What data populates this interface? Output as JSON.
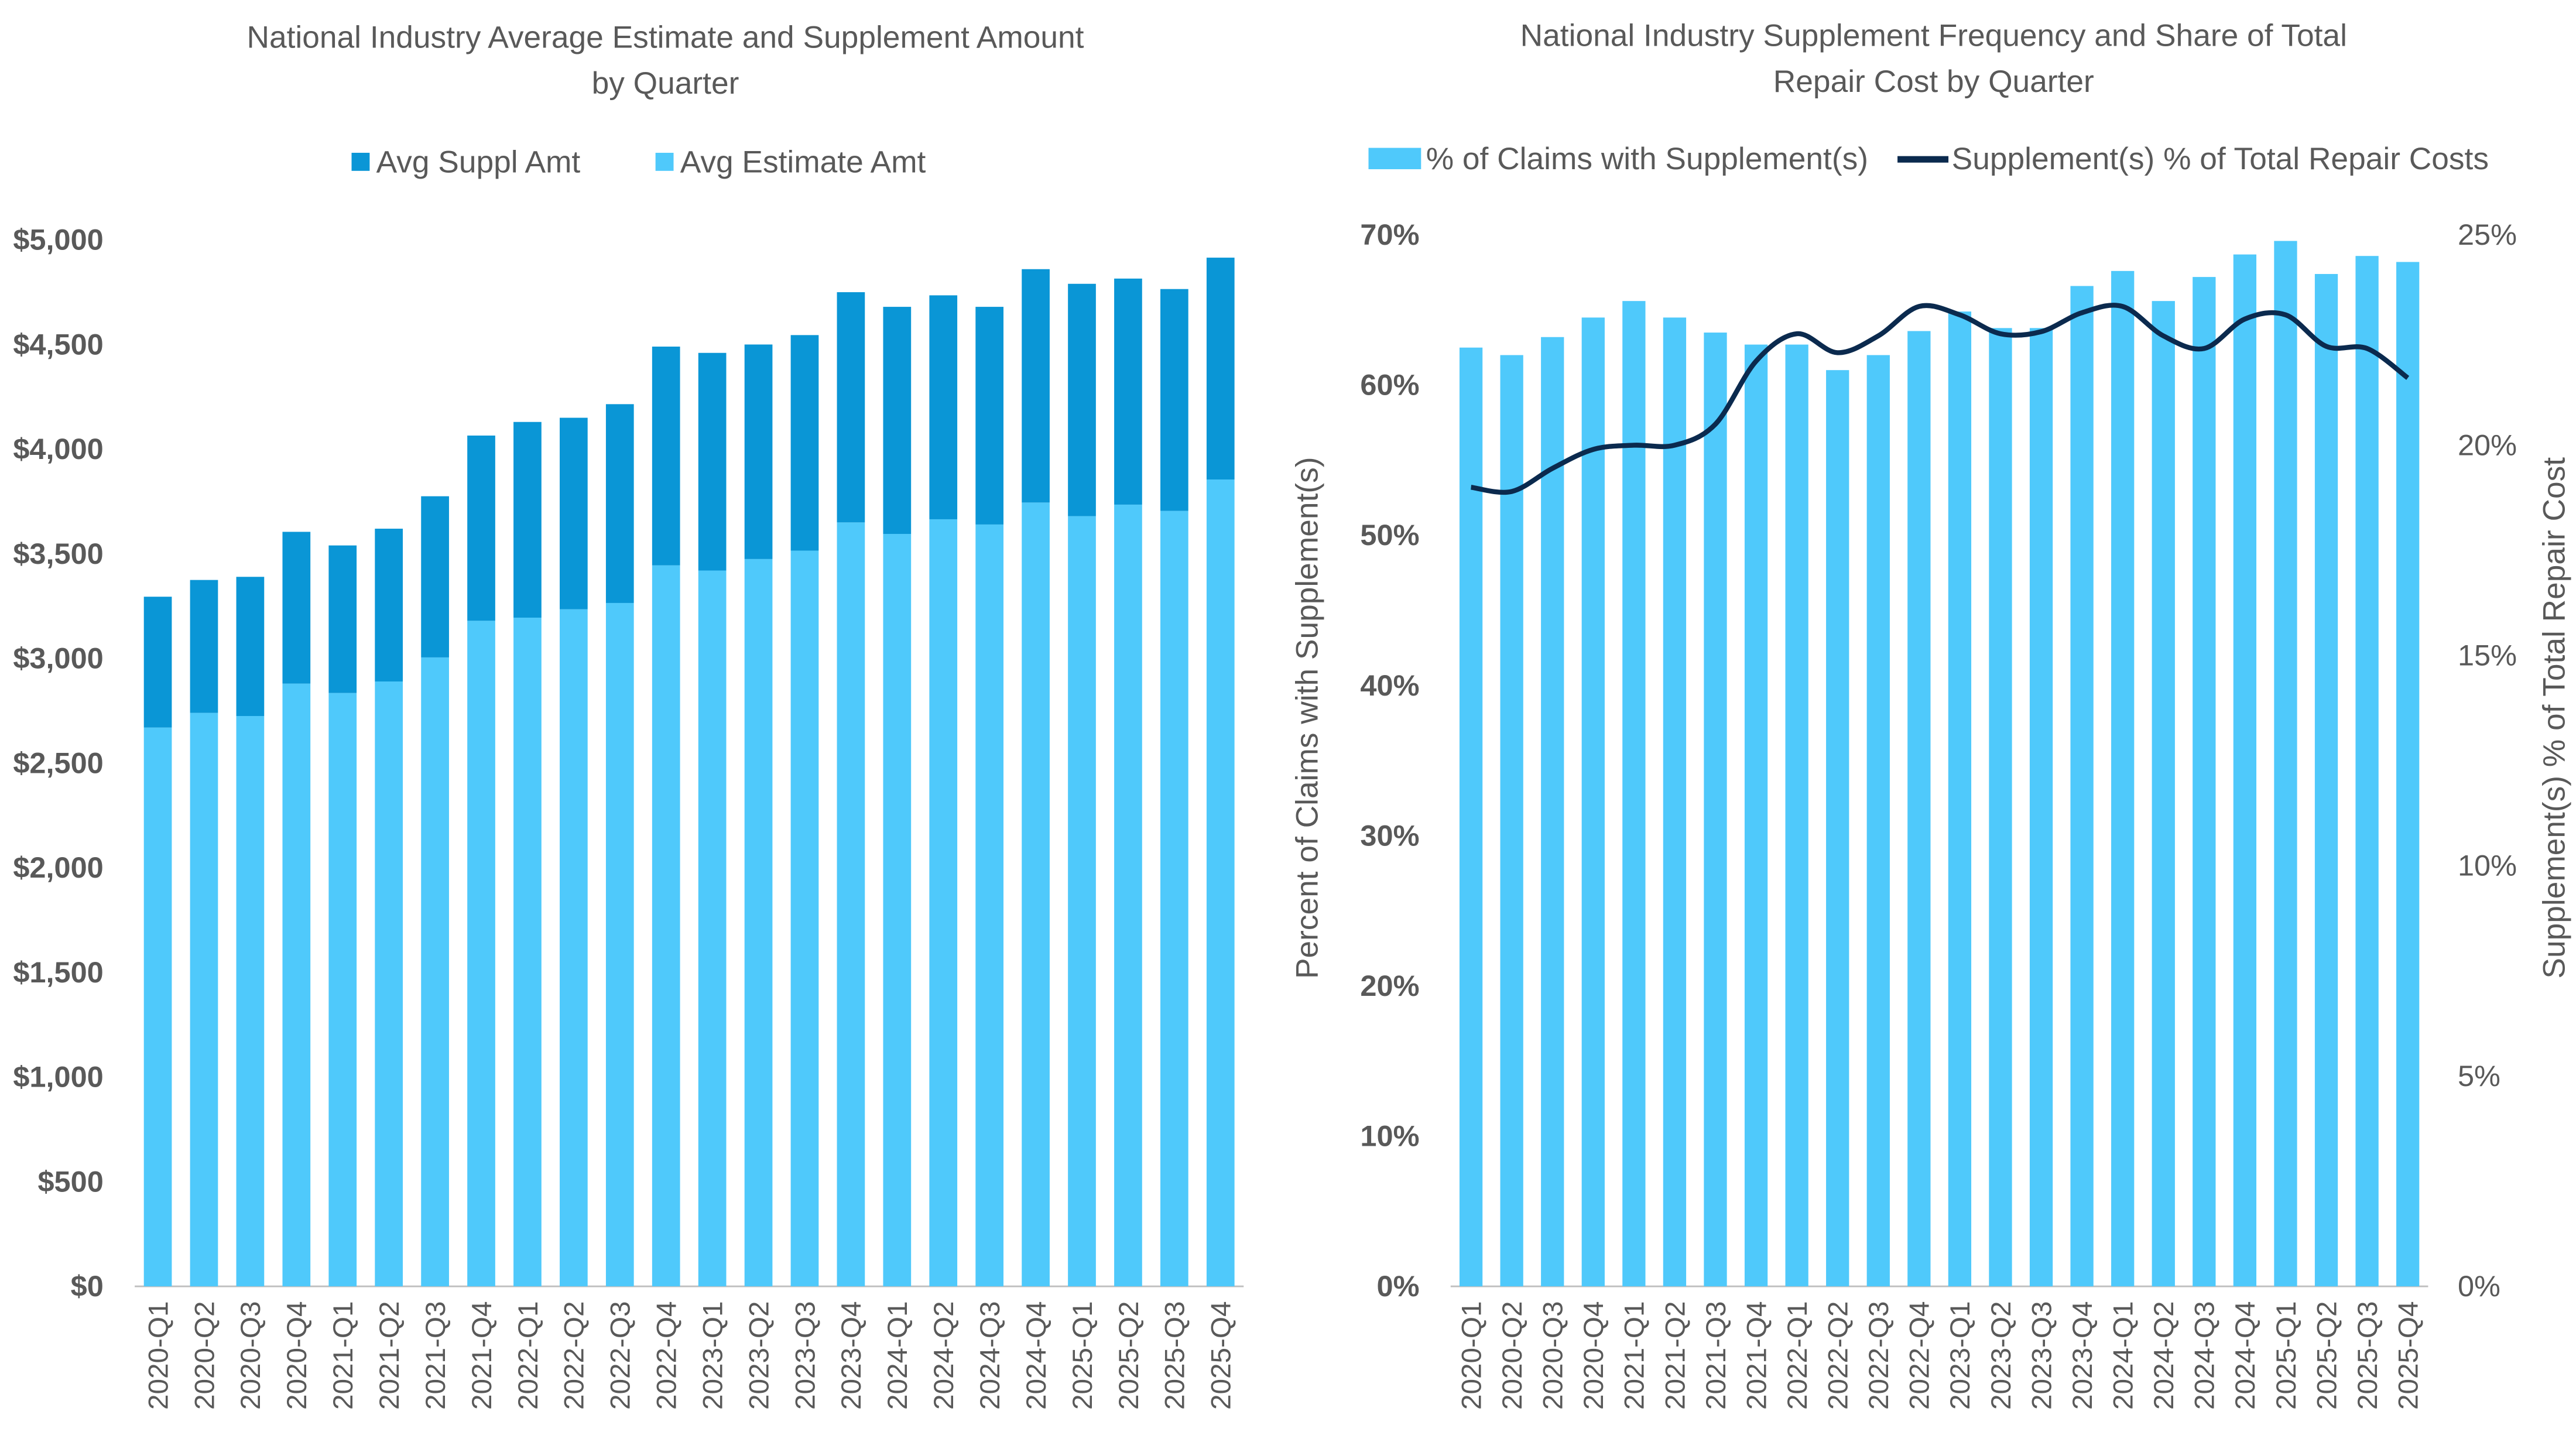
{
  "colors": {
    "estimate": "#4FC9FB",
    "supplement": "#0A96D6",
    "bar_right": "#4FC9FB",
    "line": "#0B2A4E",
    "text": "#595959"
  },
  "chart_data": [
    {
      "type": "bar",
      "stacked": true,
      "title_line1": "National Industry Average Estimate and Supplement Amount",
      "title_line2": "by Quarter",
      "legend_position": "top",
      "grid": false,
      "categories": [
        "2020-Q1",
        "2020-Q2",
        "2020-Q3",
        "2020-Q4",
        "2021-Q1",
        "2021-Q2",
        "2021-Q3",
        "2021-Q4",
        "2022-Q1",
        "2022-Q2",
        "2022-Q3",
        "2022-Q4",
        "2023-Q1",
        "2023-Q2",
        "2023-Q3",
        "2023-Q4",
        "2024-Q1",
        "2024-Q2",
        "2024-Q3",
        "2024-Q4",
        "2025-Q1",
        "2025-Q2",
        "2025-Q3",
        "2025-Q4"
      ],
      "ylim": [
        0,
        5000
      ],
      "yticks": [
        "$0",
        "$500",
        "$1,000",
        "$1,500",
        "$2,000",
        "$2,500",
        "$3,000",
        "$3,500",
        "$4,000",
        "$4,500",
        "$5,000"
      ],
      "series": [
        {
          "name": "Avg Estimate Amt",
          "values": [
            2670,
            2740,
            2725,
            2880,
            2835,
            2890,
            3005,
            3180,
            3195,
            3235,
            3265,
            3445,
            3420,
            3475,
            3515,
            3650,
            3595,
            3665,
            3640,
            3745,
            3680,
            3735,
            3705,
            3855
          ]
        },
        {
          "name": "Avg Suppl Amt",
          "values": [
            625,
            635,
            665,
            725,
            705,
            730,
            770,
            885,
            935,
            915,
            950,
            1045,
            1040,
            1025,
            1030,
            1100,
            1085,
            1070,
            1040,
            1115,
            1110,
            1080,
            1060,
            1060
          ]
        }
      ],
      "legend": [
        "Avg Suppl Amt",
        "Avg Estimate Amt"
      ]
    },
    {
      "type": "bar+line",
      "title_line1": "National Industry Supplement Frequency and Share of Total",
      "title_line2": "Repair Cost by Quarter",
      "legend_position": "top",
      "grid": false,
      "categories": [
        "2020-Q1",
        "2020-Q2",
        "2020-Q3",
        "2020-Q4",
        "2021-Q1",
        "2021-Q2",
        "2021-Q3",
        "2021-Q4",
        "2022-Q1",
        "2022-Q2",
        "2022-Q3",
        "2022-Q4",
        "2023-Q1",
        "2023-Q2",
        "2023-Q3",
        "2023-Q4",
        "2024-Q1",
        "2024-Q2",
        "2024-Q3",
        "2024-Q4",
        "2025-Q1",
        "2025-Q2",
        "2025-Q3",
        "2025-Q4"
      ],
      "ylabel": "Percent of Claims with Supplement(s)",
      "y2label": "Supplement(s) % of Total Repair Cost",
      "ylim": [
        0,
        70
      ],
      "y2lim": [
        0,
        25
      ],
      "yticks": [
        "0%",
        "10%",
        "20%",
        "30%",
        "40%",
        "50%",
        "60%",
        "70%"
      ],
      "y2ticks": [
        "0%",
        "5%",
        "10%",
        "15%",
        "20%",
        "25%"
      ],
      "series": [
        {
          "name": "% of Claims with Supplement(s)",
          "axis": "left",
          "type": "bar",
          "values": [
            62.5,
            62.0,
            63.2,
            64.5,
            65.6,
            64.5,
            63.5,
            62.7,
            62.7,
            61.0,
            62.0,
            63.6,
            64.9,
            63.8,
            63.8,
            66.6,
            67.6,
            65.6,
            67.2,
            68.7,
            69.6,
            67.4,
            68.6,
            68.2
          ]
        },
        {
          "name": "Supplement(s) % of Total Repair Costs",
          "axis": "right",
          "type": "line",
          "values": [
            19.0,
            18.9,
            19.45,
            19.9,
            20.0,
            20.0,
            20.5,
            22.0,
            22.65,
            22.2,
            22.6,
            23.3,
            23.1,
            22.65,
            22.7,
            23.15,
            23.3,
            22.6,
            22.3,
            23.0,
            23.1,
            22.35,
            22.3,
            21.6
          ]
        }
      ]
    }
  ]
}
